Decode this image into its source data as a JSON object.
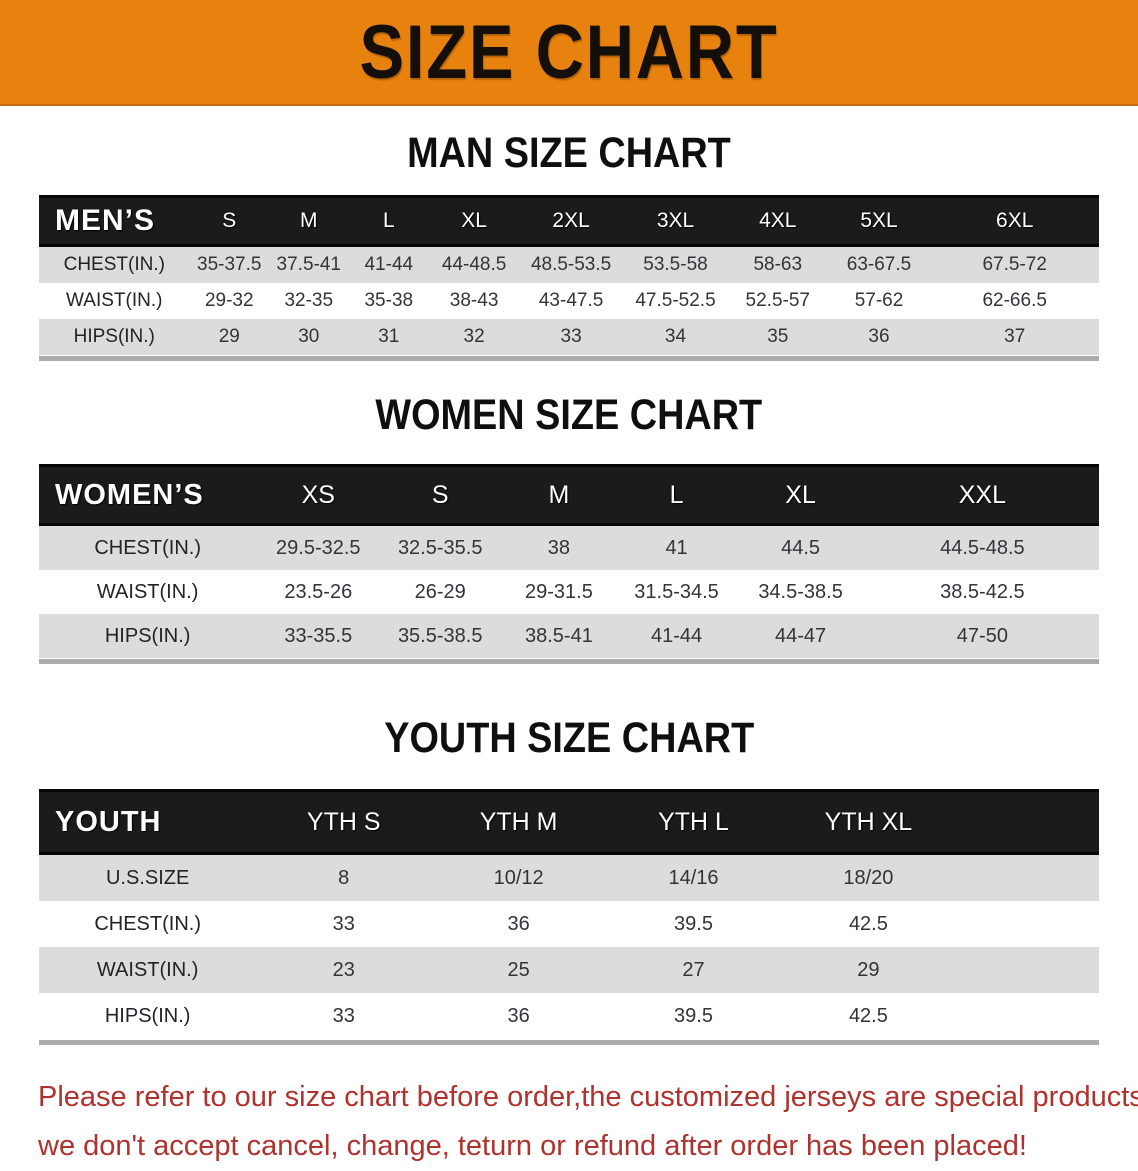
{
  "banner": {
    "title": "SIZE CHART",
    "bg_color": "#E8820F",
    "text_color": "#140F0A"
  },
  "sections": [
    {
      "heading": "MAN SIZE CHART",
      "table": {
        "header_label": "MEN’S",
        "columns": [
          "S",
          "M",
          "L",
          "XL",
          "2XL",
          "3XL",
          "4XL",
          "5XL",
          "6XL"
        ],
        "rows": [
          {
            "label": "CHEST(IN.)",
            "values": [
              "35-37.5",
              "37.5-41",
              "41-44",
              "44-48.5",
              "48.5-53.5",
              "53.5-58",
              "58-63",
              "63-67.5",
              "67.5-72"
            ]
          },
          {
            "label": "WAIST(IN.)",
            "values": [
              "29-32",
              "32-35",
              "35-38",
              "38-43",
              "43-47.5",
              "47.5-52.5",
              "52.5-57",
              "57-62",
              "62-66.5"
            ]
          },
          {
            "label": "HIPS(IN.)",
            "values": [
              "29",
              "30",
              "31",
              "32",
              "33",
              "34",
              "35",
              "36",
              "37"
            ]
          }
        ]
      }
    },
    {
      "heading": "WOMEN SIZE CHART",
      "table": {
        "header_label": "WOMEN’S",
        "columns": [
          "XS",
          "S",
          "M",
          "L",
          "XL",
          "XXL"
        ],
        "rows": [
          {
            "label": "CHEST(IN.)",
            "values": [
              "29.5-32.5",
              "32.5-35.5",
              "38",
              "41",
              "44.5",
              "44.5-48.5"
            ]
          },
          {
            "label": "WAIST(IN.)",
            "values": [
              "23.5-26",
              "26-29",
              "29-31.5",
              "31.5-34.5",
              "34.5-38.5",
              "38.5-42.5"
            ]
          },
          {
            "label": "HIPS(IN.)",
            "values": [
              "33-35.5",
              "35.5-38.5",
              "38.5-41",
              "41-44",
              "44-47",
              "47-50"
            ]
          }
        ]
      }
    },
    {
      "heading": "YOUTH SIZE CHART",
      "table": {
        "header_label": "YOUTH",
        "columns": [
          "YTH S",
          "YTH M",
          "YTH L",
          "YTH XL"
        ],
        "rows": [
          {
            "label": "U.S.SIZE",
            "values": [
              "8",
              "10/12",
              "14/16",
              "18/20"
            ]
          },
          {
            "label": "CHEST(IN.)",
            "values": [
              "33",
              "36",
              "39.5",
              "42.5"
            ]
          },
          {
            "label": "WAIST(IN.)",
            "values": [
              "23",
              "25",
              "27",
              "29"
            ]
          },
          {
            "label": "HIPS(IN.)",
            "values": [
              "33",
              "36",
              "39.5",
              "42.5"
            ]
          }
        ]
      }
    }
  ],
  "footer": {
    "line1": "Please refer to our size chart before order,the customized jerseys are special products,",
    "line2": "we don't accept cancel, change, teturn or refund after order has been placed!",
    "text_color": "#B0322E"
  }
}
